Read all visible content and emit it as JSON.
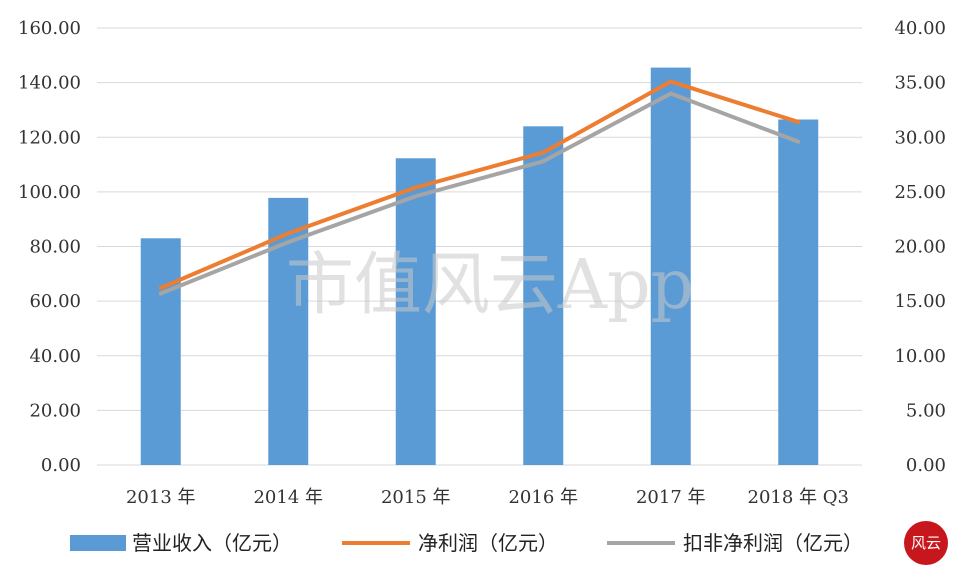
{
  "chart_data": {
    "type": "bar",
    "categories": [
      "2013 年",
      "2014 年",
      "2015 年",
      "2016 年",
      "2017 年",
      "2018 年 Q3"
    ],
    "series": [
      {
        "name": "营业收入（亿元）",
        "type": "bar",
        "axis": "left",
        "values": [
          83.0,
          97.8,
          112.3,
          124.0,
          145.5,
          126.5
        ],
        "color": "#5b9bd5"
      },
      {
        "name": "净利润（亿元）",
        "type": "line",
        "axis": "right",
        "values": [
          16.2,
          21.2,
          25.4,
          28.6,
          35.1,
          31.4
        ],
        "color": "#ed7d31"
      },
      {
        "name": "扣非净利润（亿元）",
        "type": "line",
        "axis": "right",
        "values": [
          15.7,
          20.4,
          24.6,
          27.8,
          34.0,
          29.6
        ],
        "color": "#a5a5a5"
      }
    ],
    "left_axis": {
      "ylim": [
        0,
        160
      ],
      "ticks": [
        "0.00",
        "20.00",
        "40.00",
        "60.00",
        "80.00",
        "100.00",
        "120.00",
        "140.00",
        "160.00"
      ]
    },
    "right_axis": {
      "ylim": [
        0,
        40
      ],
      "ticks": [
        "0.00",
        "5.00",
        "10.00",
        "15.00",
        "20.00",
        "25.00",
        "30.00",
        "35.00",
        "40.00"
      ]
    },
    "grid": true,
    "legend_position": "bottom",
    "watermark": "市值风云App",
    "logo_text": "风云"
  }
}
